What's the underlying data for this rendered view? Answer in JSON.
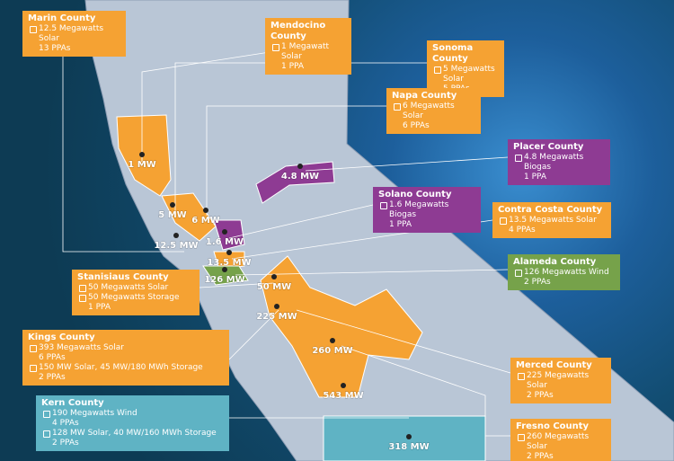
{
  "callouts": [
    {
      "title": "Marin County",
      "lines": [
        "12.5 Megawatts Solar",
        "13 PPAs"
      ]
    },
    {
      "title": "Mendocino County",
      "lines": [
        "1 Megawatt Solar",
        "1 PPA"
      ]
    },
    {
      "title": "Sonoma County",
      "lines": [
        "5 Megawatts Solar",
        "5 PPAs"
      ]
    },
    {
      "title": "Napa County",
      "lines": [
        "6 Megawatts Solar",
        "6 PPAs"
      ]
    },
    {
      "title": "Placer County",
      "lines": [
        "4.8 Megawatts Biogas",
        "1 PPA"
      ]
    },
    {
      "title": "Solano County",
      "lines": [
        "1.6 Megawatts Biogas",
        "1 PPA"
      ]
    },
    {
      "title": "Contra Costa County",
      "lines": [
        "13.5 Megawatts Solar",
        "4 PPAs"
      ]
    },
    {
      "title": "Alameda County",
      "lines": [
        "126 Megawatts Wind",
        "2 PPAs"
      ]
    },
    {
      "title": "Stanisiaus County",
      "lines": [
        "50 Megawatts Solar",
        "50 Megawatts Storage",
        "1 PPA"
      ]
    },
    {
      "title": "Kings County",
      "lines": [
        "393 Megawatts Solar",
        "6 PPAs",
        "150 MW Solar, 45 MW/180 MWh Storage",
        "2 PPAs"
      ]
    },
    {
      "title": "Kern County",
      "lines": [
        "190 Megawatts Wind",
        "4 PPAs",
        "128 MW Solar, 40 MW/160 MWh Storage",
        "2 PPAs"
      ]
    },
    {
      "title": "Merced County",
      "lines": [
        "225 Megawatts Solar",
        "2 PPAs"
      ]
    },
    {
      "title": "Fresno County",
      "lines": [
        "260 Megawatts Solar",
        "2 PPAs"
      ]
    }
  ],
  "map_labels": [
    "1 MW",
    "4.8 MW",
    "5 MW",
    "6 MW",
    "1.6 MW",
    "12.5 MW",
    "13.5 MW",
    "126 MW",
    "50 MW",
    "225 MW",
    "260 MW",
    "543 MW",
    "318 MW"
  ]
}
